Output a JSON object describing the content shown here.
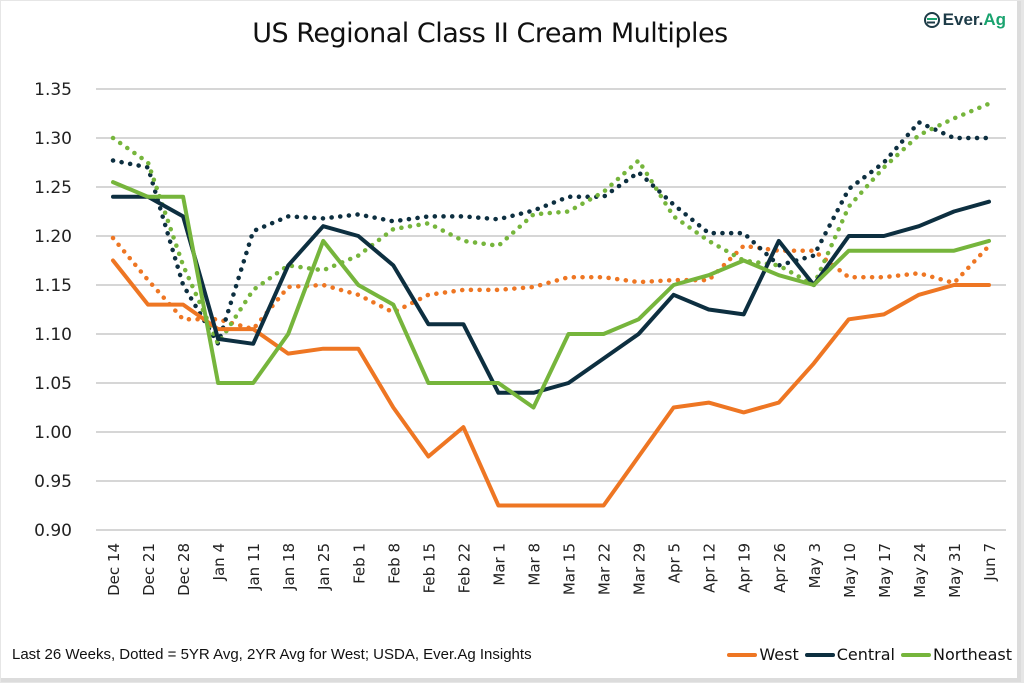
{
  "logo": {
    "prefix": "Ever.",
    "suffix": "Ag"
  },
  "footer_note": "Last 26 Weeks, Dotted = 5YR Avg, 2YR Avg for West; USDA, Ever.Ag Insights",
  "chart_data": {
    "type": "line",
    "title": "US Regional Class II Cream Multiples",
    "xlabel": "",
    "ylabel": "",
    "ylim": [
      0.9,
      1.35
    ],
    "yticks": [
      "1.35",
      "1.30",
      "1.25",
      "1.20",
      "1.15",
      "1.10",
      "1.05",
      "1.00",
      "0.95",
      "0.90"
    ],
    "ytick_values": [
      1.35,
      1.3,
      1.25,
      1.2,
      1.15,
      1.1,
      1.05,
      1.0,
      0.95,
      0.9
    ],
    "grid": true,
    "legend_position": "bottom-right",
    "categories": [
      "Dec 14",
      "Dec 21",
      "Dec 28",
      "Jan 4",
      "Jan 11",
      "Jan 18",
      "Jan 25",
      "Feb 1",
      "Feb 8",
      "Feb 15",
      "Feb 22",
      "Mar 1",
      "Mar 8",
      "Mar 15",
      "Mar 22",
      "Mar 29",
      "Apr 5",
      "Apr 12",
      "Apr 19",
      "Apr 26",
      "May 3",
      "May 10",
      "May 17",
      "May 24",
      "May 31",
      "Jun 7"
    ],
    "series": [
      {
        "name": "West Avg (2YR)",
        "style": "dotted",
        "color": "#ee7623",
        "in_legend": false,
        "values": [
          1.198,
          1.155,
          1.115,
          1.115,
          1.105,
          1.148,
          1.15,
          1.14,
          1.122,
          1.14,
          1.145,
          1.145,
          1.148,
          1.158,
          1.158,
          1.153,
          1.155,
          1.155,
          1.19,
          1.185,
          1.185,
          1.158,
          1.158,
          1.162,
          1.152,
          1.19
        ]
      },
      {
        "name": "Central Avg (5YR)",
        "style": "dotted",
        "color": "#0d2f40",
        "in_legend": false,
        "values": [
          1.277,
          1.27,
          1.15,
          1.09,
          1.205,
          1.22,
          1.218,
          1.222,
          1.215,
          1.22,
          1.22,
          1.217,
          1.226,
          1.24,
          1.24,
          1.265,
          1.232,
          1.203,
          1.203,
          1.17,
          1.18,
          1.248,
          1.275,
          1.316,
          1.3,
          1.3
        ]
      },
      {
        "name": "Northeast Avg (5YR)",
        "style": "dotted",
        "color": "#76b53c",
        "in_legend": false,
        "values": [
          1.3,
          1.275,
          1.17,
          1.09,
          1.145,
          1.17,
          1.165,
          1.18,
          1.207,
          1.213,
          1.195,
          1.19,
          1.222,
          1.225,
          1.245,
          1.277,
          1.22,
          1.195,
          1.175,
          1.17,
          1.15,
          1.23,
          1.27,
          1.303,
          1.32,
          1.335
        ]
      },
      {
        "name": "West",
        "style": "solid",
        "color": "#ee7623",
        "in_legend": true,
        "values": [
          1.175,
          1.13,
          1.13,
          1.105,
          1.105,
          1.08,
          1.085,
          1.085,
          1.025,
          0.975,
          1.005,
          0.925,
          0.925,
          0.925,
          0.925,
          0.975,
          1.025,
          1.03,
          1.02,
          1.03,
          1.07,
          1.115,
          1.12,
          1.14,
          1.15,
          1.15
        ]
      },
      {
        "name": "Central",
        "style": "solid",
        "color": "#0d2f40",
        "in_legend": true,
        "values": [
          1.24,
          1.24,
          1.22,
          1.095,
          1.09,
          1.17,
          1.21,
          1.2,
          1.17,
          1.11,
          1.11,
          1.04,
          1.04,
          1.05,
          1.075,
          1.1,
          1.14,
          1.125,
          1.12,
          1.195,
          1.15,
          1.2,
          1.2,
          1.21,
          1.225,
          1.235
        ]
      },
      {
        "name": "Northeast",
        "style": "solid",
        "color": "#76b53c",
        "in_legend": true,
        "values": [
          1.255,
          1.24,
          1.24,
          1.05,
          1.05,
          1.1,
          1.195,
          1.15,
          1.13,
          1.05,
          1.05,
          1.05,
          1.025,
          1.1,
          1.1,
          1.115,
          1.15,
          1.16,
          1.175,
          1.16,
          1.15,
          1.185,
          1.185,
          1.185,
          1.185,
          1.195
        ]
      }
    ],
    "legend": [
      {
        "label": "West",
        "color": "#ee7623"
      },
      {
        "label": "Central",
        "color": "#0d2f40"
      },
      {
        "label": "Northeast",
        "color": "#76b53c"
      }
    ]
  }
}
